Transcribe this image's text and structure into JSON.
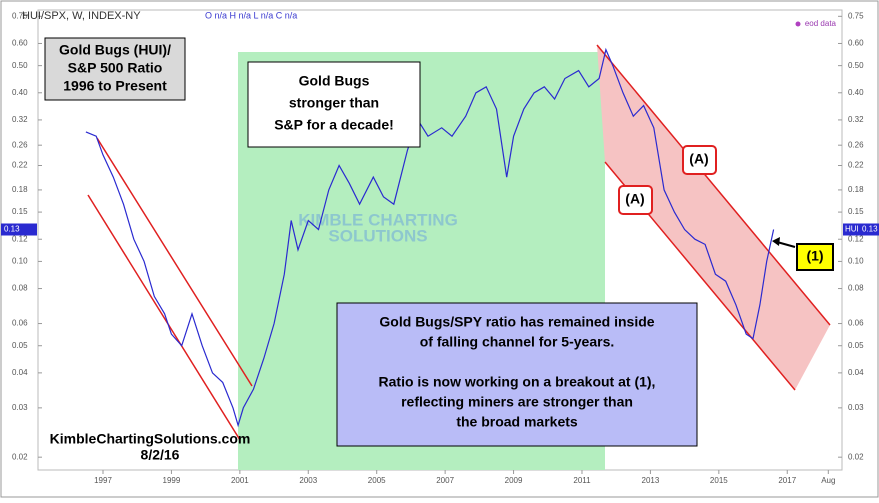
{
  "chart_data": {
    "type": "line",
    "header": "HUI/SPX, W, INDEX-NY",
    "ohlc": "O n/a H n/a L n/a C n/a",
    "source_note": "eod data",
    "x": [
      1996.5,
      1996.8,
      1997.0,
      1997.3,
      1997.6,
      1997.9,
      1998.2,
      1998.5,
      1998.8,
      1999.0,
      1999.3,
      1999.6,
      1999.9,
      2000.2,
      2000.5,
      2000.8,
      2000.95,
      2001.1,
      2001.4,
      2001.7,
      2002.0,
      2002.3,
      2002.5,
      2002.7,
      2003.0,
      2003.3,
      2003.6,
      2003.9,
      2004.2,
      2004.5,
      2004.9,
      2005.2,
      2005.5,
      2005.9,
      2006.2,
      2006.5,
      2006.9,
      2007.2,
      2007.6,
      2007.9,
      2008.2,
      2008.5,
      2008.8,
      2009.0,
      2009.3,
      2009.6,
      2009.9,
      2010.2,
      2010.5,
      2010.9,
      2011.2,
      2011.5,
      2011.7,
      2011.9,
      2012.2,
      2012.5,
      2012.8,
      2013.1,
      2013.4,
      2013.7,
      2014.0,
      2014.3,
      2014.6,
      2014.9,
      2015.2,
      2015.5,
      2015.8,
      2016.0,
      2016.2,
      2016.4,
      2016.6
    ],
    "series": [
      {
        "name": "HUI",
        "color": "#2a2ad0",
        "last_value": 0.13,
        "values": [
          0.29,
          0.28,
          0.24,
          0.2,
          0.16,
          0.12,
          0.1,
          0.075,
          0.065,
          0.055,
          0.05,
          0.065,
          0.05,
          0.04,
          0.037,
          0.03,
          0.026,
          0.03,
          0.035,
          0.045,
          0.06,
          0.09,
          0.14,
          0.11,
          0.14,
          0.13,
          0.18,
          0.22,
          0.19,
          0.16,
          0.2,
          0.17,
          0.16,
          0.25,
          0.32,
          0.28,
          0.3,
          0.28,
          0.33,
          0.4,
          0.42,
          0.35,
          0.2,
          0.28,
          0.35,
          0.4,
          0.42,
          0.38,
          0.45,
          0.48,
          0.42,
          0.45,
          0.57,
          0.5,
          0.4,
          0.33,
          0.36,
          0.3,
          0.18,
          0.15,
          0.13,
          0.12,
          0.115,
          0.09,
          0.085,
          0.07,
          0.055,
          0.053,
          0.07,
          0.1,
          0.13
        ]
      }
    ],
    "log_y": true,
    "xlim": [
      1995.1,
      2018.6
    ],
    "xticks": [
      1997,
      1999,
      2001,
      2003,
      2005,
      2007,
      2009,
      2011,
      2013,
      2015,
      2017,
      {
        "value": 2018.2,
        "label": "Aug"
      }
    ],
    "ylim": [
      0.018,
      0.79
    ],
    "yticks": [
      0.02,
      0.03,
      0.04,
      {
        "value": 0.05,
        "label": "0.05"
      },
      0.06,
      0.08,
      {
        "value": 0.1,
        "label": "0.10"
      },
      0.12,
      0.15,
      0.18,
      0.22,
      0.26,
      0.32,
      {
        "value": 0.4,
        "label": "0.40"
      },
      {
        "value": 0.5,
        "label": "0.50"
      },
      {
        "value": 0.6,
        "label": "0.60"
      },
      0.75
    ],
    "annotations": {
      "title_box": [
        "Gold Bugs (HUI)/",
        "S&P 500 Ratio",
        "1996 to Present"
      ],
      "decade_box": [
        "Gold Bugs",
        "stronger than",
        "S&P for a decade!"
      ],
      "channel_box": [
        "Gold Bugs/SPY ratio has remained inside",
        "of falling channel for 5-years.",
        "",
        "Ratio is now working on a breakout at (1),",
        "reflecting miners are stronger than",
        "the broad markets"
      ],
      "label_a1": "(A)",
      "label_a2": "(A)",
      "label_1": "(1)",
      "credit": "KimbleChartingSolutions.com",
      "date": "8/2/16",
      "watermark": [
        "KIMBLE CHARTING",
        "SOLUTIONS"
      ]
    }
  }
}
